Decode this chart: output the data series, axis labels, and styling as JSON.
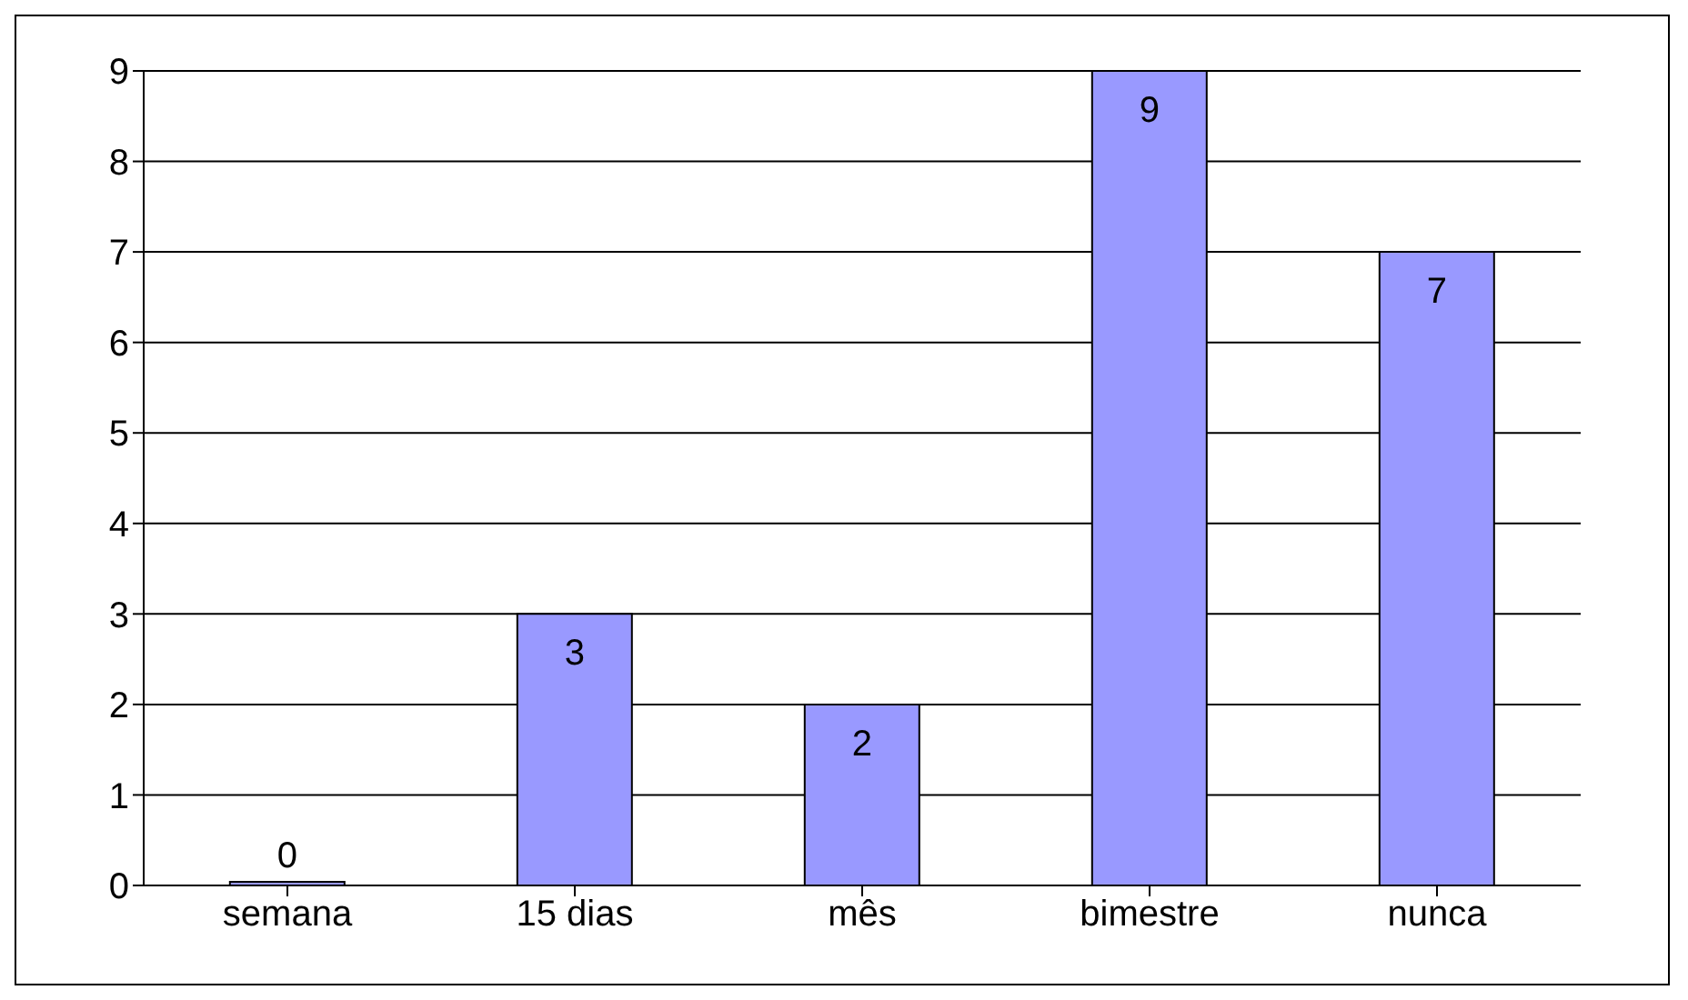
{
  "chart_data": {
    "type": "bar",
    "categories": [
      "semana",
      "15 dias",
      "mês",
      "bimestre",
      "nunca"
    ],
    "values": [
      0,
      3,
      2,
      9,
      7
    ],
    "color": "#9999ff",
    "ylim": [
      0,
      9
    ],
    "yticks": [
      0,
      1,
      2,
      3,
      4,
      5,
      6,
      7,
      8,
      9
    ],
    "grid": "y",
    "data_labels": true
  }
}
